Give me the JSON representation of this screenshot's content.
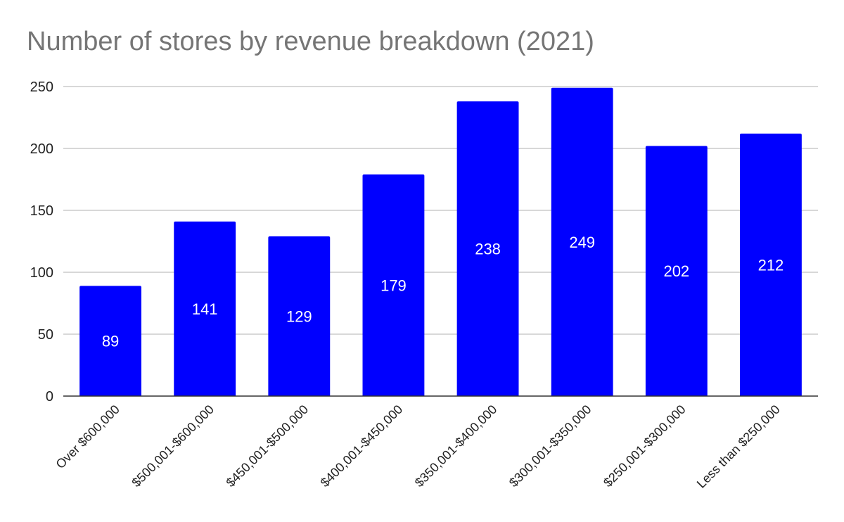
{
  "chart_data": {
    "type": "bar",
    "title": "Number of stores by revenue breakdown (2021)",
    "categories": [
      "Over $600,000",
      "$500,001-$600,000",
      "$450,001-$500,000",
      "$400,001-$450,000",
      "$350,001-$400,000",
      "$300,001-$350,000",
      "$250,001-$300,000",
      "Less than $250,000"
    ],
    "values": [
      89,
      141,
      129,
      179,
      238,
      249,
      202,
      212
    ],
    "data_labels": [
      "89",
      "141",
      "129",
      "179",
      "238",
      "249",
      "202",
      "212"
    ],
    "ylim": [
      0,
      250
    ],
    "yticks": [
      0,
      50,
      100,
      150,
      200,
      250
    ],
    "ytick_labels": [
      "0",
      "50",
      "100",
      "150",
      "200",
      "250"
    ],
    "xlabel": "",
    "ylabel": "",
    "grid": true,
    "legend": "none",
    "bar_color": "#0000ff",
    "label_color": "#ffffff",
    "gridline_color": "#cccccc",
    "axis_color": "#333333",
    "tick_label_color": "#222222",
    "title_color": "#757575"
  }
}
